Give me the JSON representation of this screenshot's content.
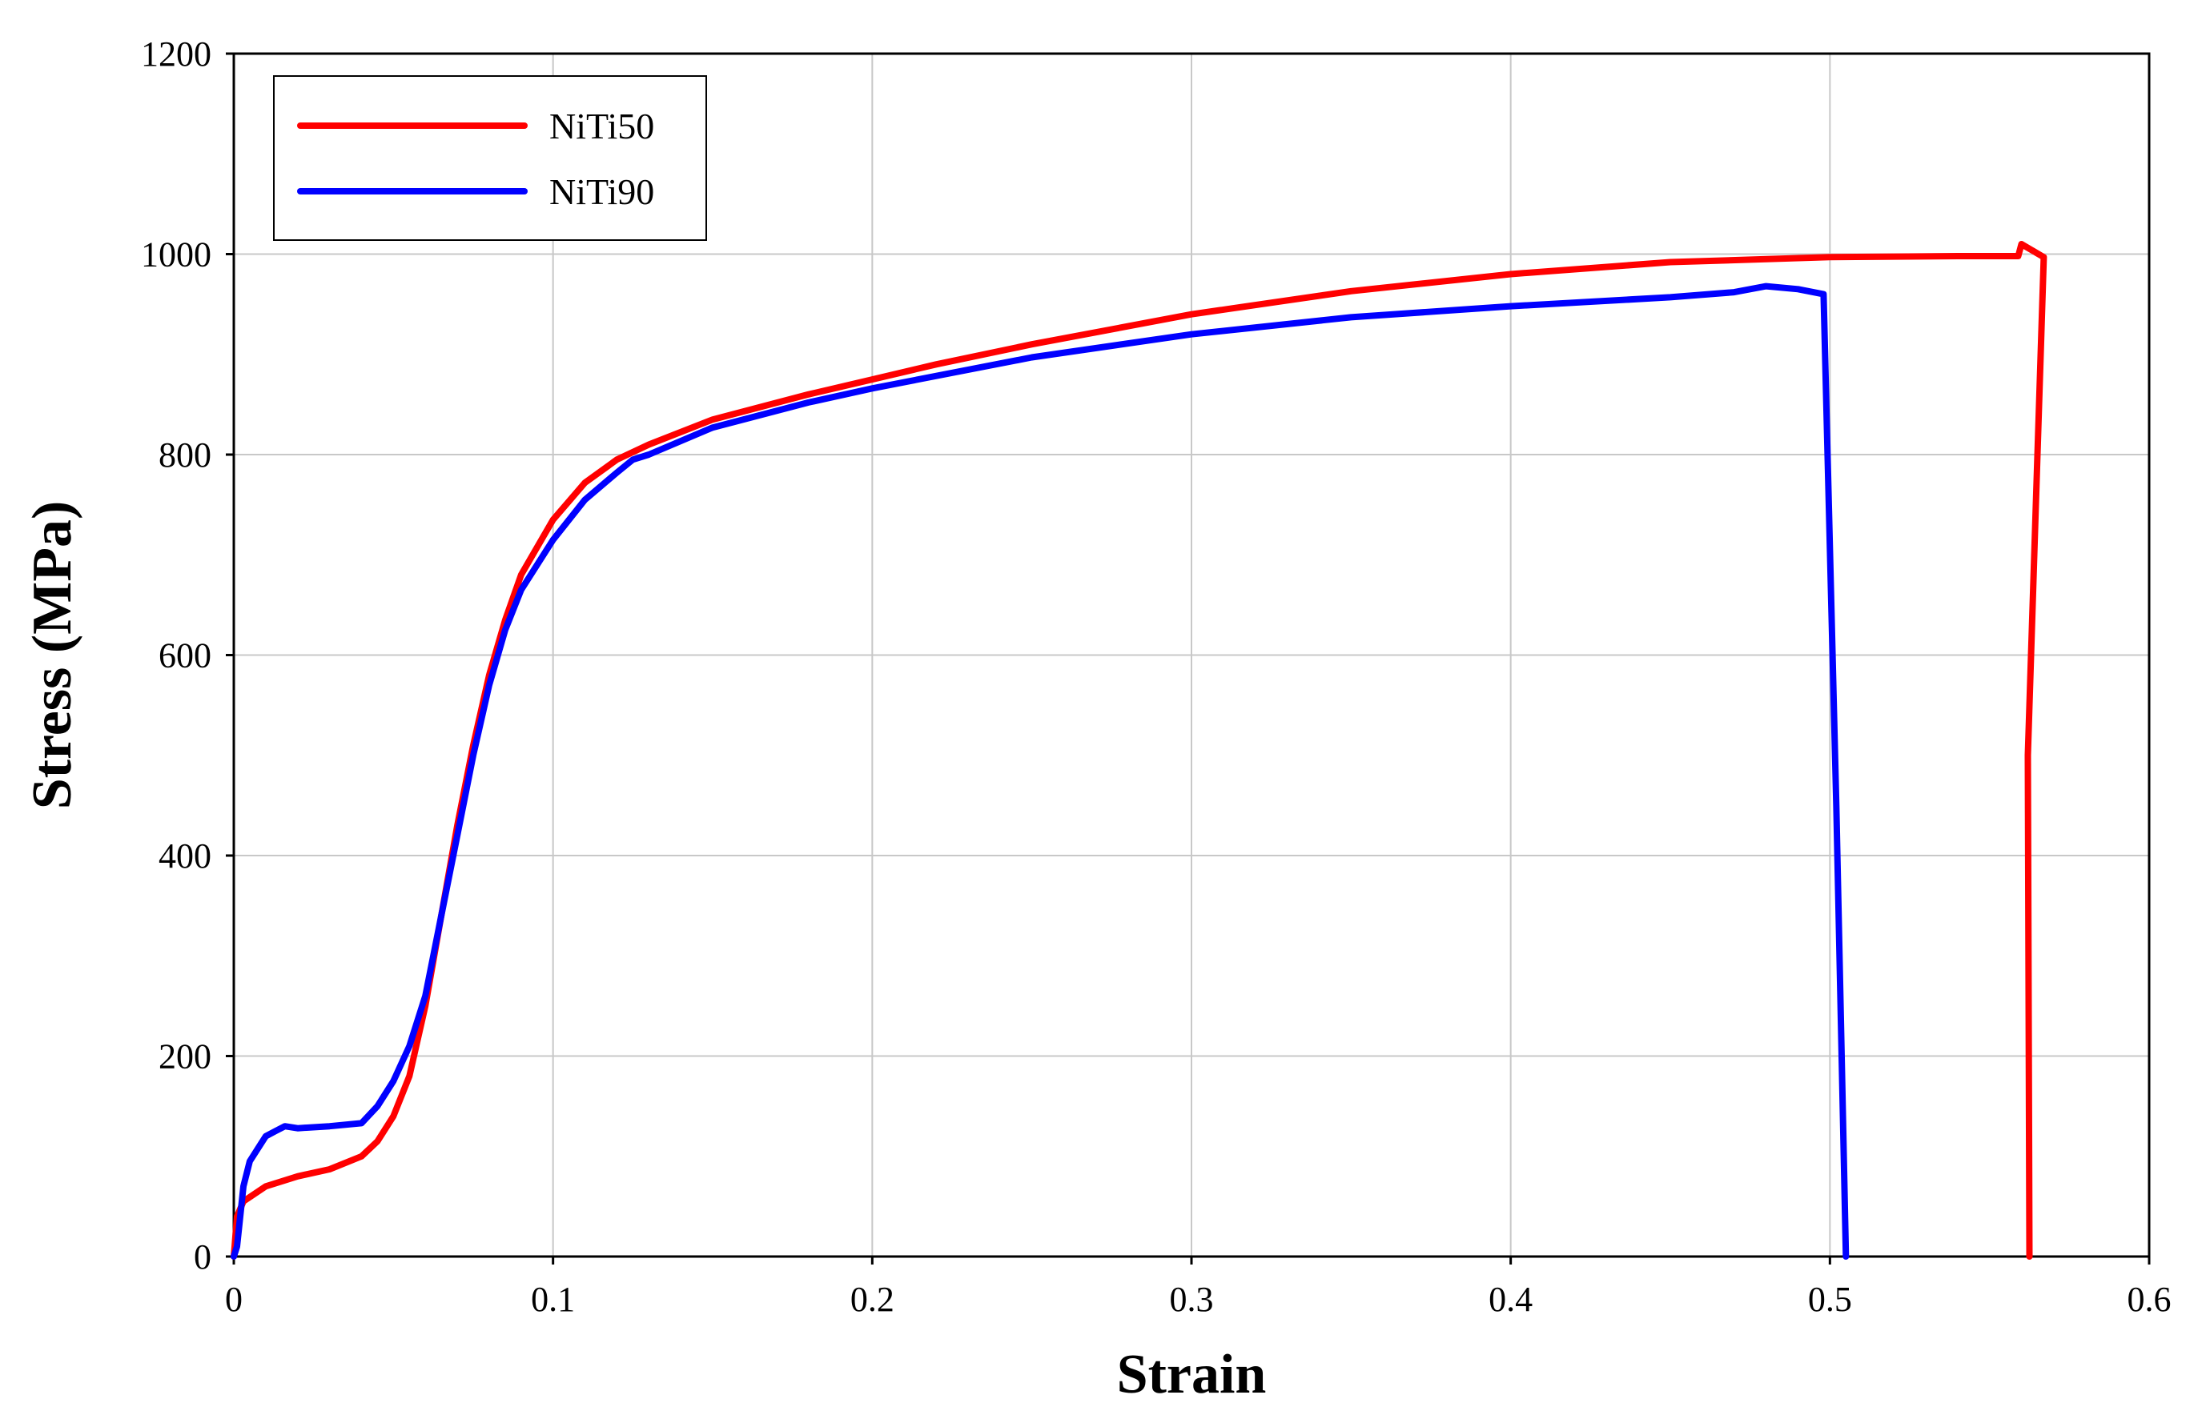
{
  "chart_data": {
    "type": "line",
    "title": "",
    "xlabel": "Strain",
    "ylabel": "Stress (MPa)",
    "xlim": [
      0,
      0.6
    ],
    "ylim": [
      0,
      1200
    ],
    "xticks": [
      0,
      0.1,
      0.2,
      0.3,
      0.4,
      0.5,
      0.6
    ],
    "xtick_labels": [
      "0",
      "0.1",
      "0.2",
      "0.3",
      "0.4",
      "0.5",
      "0.6"
    ],
    "yticks": [
      0,
      200,
      400,
      600,
      800,
      1000,
      1200
    ],
    "ytick_labels": [
      "0",
      "200",
      "400",
      "600",
      "800",
      "1000",
      "1200"
    ],
    "grid": true,
    "legend": "top-left",
    "series": [
      {
        "name": "NiTi50",
        "color": "#ff0000",
        "x": [
          0,
          0.001,
          0.003,
          0.01,
          0.02,
          0.03,
          0.04,
          0.045,
          0.05,
          0.055,
          0.06,
          0.065,
          0.07,
          0.075,
          0.08,
          0.085,
          0.09,
          0.1,
          0.11,
          0.12,
          0.13,
          0.15,
          0.18,
          0.2,
          0.22,
          0.25,
          0.28,
          0.3,
          0.35,
          0.4,
          0.45,
          0.5,
          0.54,
          0.55,
          0.559,
          0.56,
          0.567,
          0.562,
          0.5625
        ],
        "y": [
          0,
          40,
          55,
          70,
          80,
          87,
          100,
          115,
          140,
          180,
          250,
          340,
          430,
          510,
          580,
          635,
          680,
          735,
          772,
          795,
          810,
          835,
          860,
          875,
          890,
          910,
          928,
          940,
          963,
          980,
          992,
          997,
          998,
          998,
          998,
          1010,
          997,
          500,
          0
        ]
      },
      {
        "name": "NiTi90",
        "color": "#0000ff",
        "x": [
          0,
          0.001,
          0.003,
          0.005,
          0.008,
          0.01,
          0.013,
          0.016,
          0.02,
          0.03,
          0.04,
          0.045,
          0.05,
          0.055,
          0.06,
          0.065,
          0.07,
          0.075,
          0.08,
          0.085,
          0.09,
          0.1,
          0.11,
          0.12,
          0.125,
          0.13,
          0.15,
          0.18,
          0.2,
          0.25,
          0.3,
          0.35,
          0.4,
          0.45,
          0.47,
          0.48,
          0.49,
          0.498,
          0.502,
          0.505
        ],
        "y": [
          0,
          10,
          70,
          95,
          110,
          120,
          125,
          130,
          128,
          130,
          133,
          150,
          175,
          210,
          260,
          340,
          420,
          500,
          570,
          625,
          665,
          715,
          755,
          782,
          795,
          800,
          827,
          852,
          866,
          897,
          920,
          937,
          948,
          957,
          962,
          968,
          965,
          960,
          450,
          0
        ]
      }
    ]
  }
}
